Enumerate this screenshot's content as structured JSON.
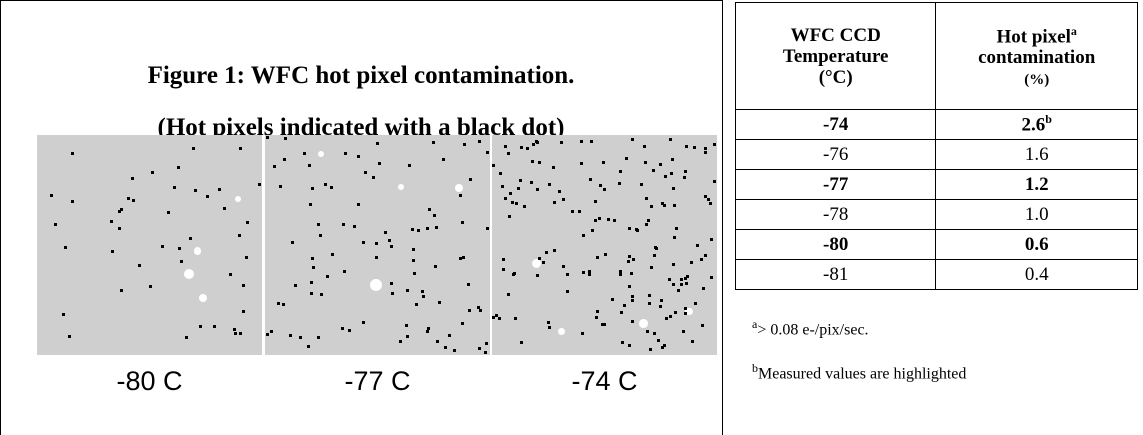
{
  "figure": {
    "title": "Figure 1: WFC hot pixel contamination.",
    "subtitle": "(Hot pixels indicated with a black dot)",
    "panels": [
      "-80 C",
      "-77 C",
      "-74 C"
    ]
  },
  "table": {
    "headers": [
      {
        "lines": [
          "WFC CCD",
          "Temperature",
          "(°C)"
        ]
      },
      {
        "lines": [
          "Hot pixel",
          "contamination",
          "(%)"
        ],
        "note": "a"
      }
    ],
    "rows": [
      {
        "temperature": "-74",
        "contamination": "2.6",
        "note": "b",
        "highlighted": true
      },
      {
        "temperature": "-76",
        "contamination": "1.6",
        "highlighted": false
      },
      {
        "temperature": "-77",
        "contamination": "1.2",
        "highlighted": true
      },
      {
        "temperature": "-78",
        "contamination": "1.0",
        "highlighted": false
      },
      {
        "temperature": "-80",
        "contamination": "0.6",
        "highlighted": true
      },
      {
        "temperature": "-81",
        "contamination": "0.4",
        "highlighted": false
      }
    ],
    "footnotes": [
      {
        "mark": "a",
        "text": "> 0.08 e-/pix/sec."
      },
      {
        "mark": "b",
        "text": "Measured values are highlighted"
      }
    ]
  }
}
